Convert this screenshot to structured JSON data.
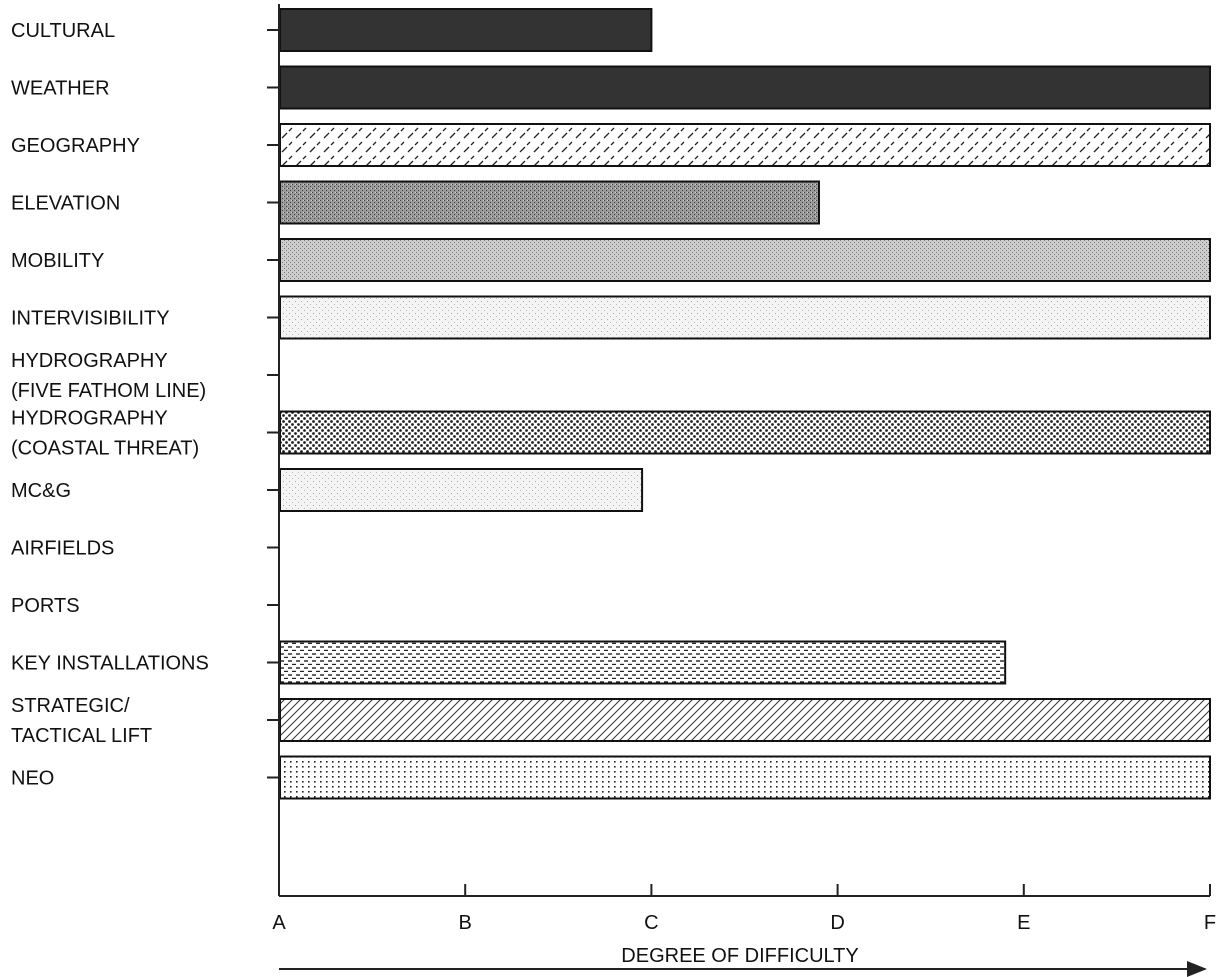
{
  "chart_data": {
    "type": "bar",
    "orientation": "horizontal",
    "categories": [
      [
        "CULTURAL"
      ],
      [
        "WEATHER"
      ],
      [
        "GEOGRAPHY"
      ],
      [
        "ELEVATION"
      ],
      [
        "MOBILITY"
      ],
      [
        "INTERVISIBILITY"
      ],
      [
        "HYDROGRAPHY",
        "(FIVE FATHOM LINE)"
      ],
      [
        "HYDROGRAPHY",
        "(COASTAL THREAT)"
      ],
      [
        "MC&G"
      ],
      [
        "AIRFIELDS"
      ],
      [
        "PORTS"
      ],
      [
        "KEY INSTALLATIONS"
      ],
      [
        "STRATEGIC/",
        "TACTICAL LIFT"
      ],
      [
        "NEO"
      ]
    ],
    "values": [
      2.0,
      5.0,
      5.0,
      2.9,
      5.0,
      5.0,
      0,
      5.0,
      1.95,
      0,
      0,
      3.9,
      5.0,
      5.0
    ],
    "patterns": [
      "solid-dark",
      "solid-dark",
      "dashed-diagonal",
      "dense-stipple",
      "fine-stipple",
      "light-stipple",
      "none",
      "coarse-dots",
      "light-stipple",
      "none",
      "none",
      "dashed-horizontal",
      "diagonal-hatch",
      "dotted-grid"
    ],
    "x_ticks": [
      "A",
      "B",
      "C",
      "D",
      "E",
      "F"
    ],
    "xlim": [
      0,
      5
    ],
    "xlabel": "DEGREE OF DIFFICULTY",
    "xlabel_arrow": true,
    "grid": false,
    "colors": {
      "bar_dark": "#333333",
      "stroke": "#111111"
    }
  }
}
